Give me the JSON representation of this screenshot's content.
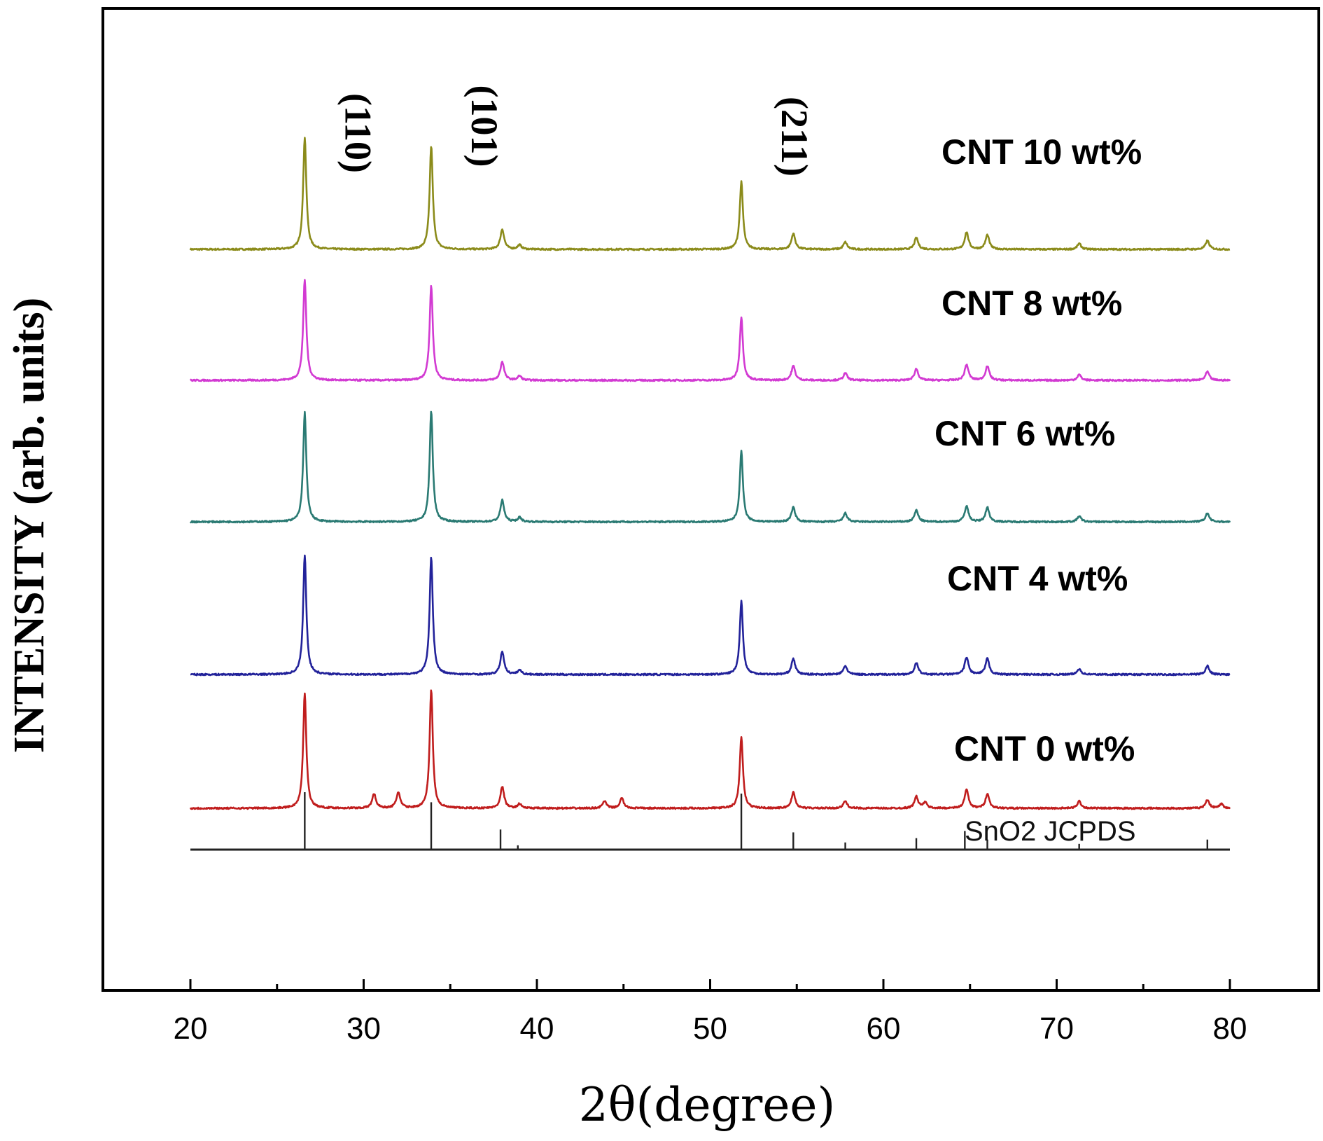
{
  "chart_data": {
    "type": "line",
    "xlabel": "2θ(degree)",
    "ylabel": "INTENSITY (arb. units)",
    "xlim": [
      15,
      82
    ],
    "xticks": [
      20,
      30,
      40,
      50,
      60,
      70,
      80
    ],
    "x_minor_step": 5,
    "grid": false,
    "legend": "inline labels to the right of each trace",
    "peak_labels": [
      {
        "text": "(110)",
        "x": 26.6
      },
      {
        "text": "(101)",
        "x": 33.9
      },
      {
        "text": "(211)",
        "x": 51.8
      }
    ],
    "series": [
      {
        "name": "CNT 10 wt%",
        "color": "#8b8b1a",
        "peaks": [
          {
            "x": 26.6,
            "h": 78
          },
          {
            "x": 33.9,
            "h": 72
          },
          {
            "x": 38.0,
            "h": 14
          },
          {
            "x": 39.0,
            "h": 3
          },
          {
            "x": 51.8,
            "h": 47
          },
          {
            "x": 54.8,
            "h": 11
          },
          {
            "x": 57.8,
            "h": 5
          },
          {
            "x": 61.9,
            "h": 8
          },
          {
            "x": 64.8,
            "h": 12
          },
          {
            "x": 66.0,
            "h": 10
          },
          {
            "x": 71.3,
            "h": 4
          },
          {
            "x": 78.7,
            "h": 6
          }
        ]
      },
      {
        "name": "CNT 8 wt%",
        "color": "#d23ad2",
        "peaks": [
          {
            "x": 26.6,
            "h": 70
          },
          {
            "x": 33.9,
            "h": 66
          },
          {
            "x": 38.0,
            "h": 13
          },
          {
            "x": 39.0,
            "h": 3
          },
          {
            "x": 51.8,
            "h": 44
          },
          {
            "x": 54.8,
            "h": 10
          },
          {
            "x": 57.8,
            "h": 5
          },
          {
            "x": 61.9,
            "h": 8
          },
          {
            "x": 64.8,
            "h": 11
          },
          {
            "x": 66.0,
            "h": 10
          },
          {
            "x": 71.3,
            "h": 4
          },
          {
            "x": 78.7,
            "h": 6
          }
        ]
      },
      {
        "name": "CNT 6 wt%",
        "color": "#2a7a73",
        "peaks": [
          {
            "x": 26.6,
            "h": 76
          },
          {
            "x": 33.9,
            "h": 77
          },
          {
            "x": 38.0,
            "h": 15
          },
          {
            "x": 39.0,
            "h": 3
          },
          {
            "x": 51.8,
            "h": 49
          },
          {
            "x": 54.8,
            "h": 10
          },
          {
            "x": 57.8,
            "h": 6
          },
          {
            "x": 61.9,
            "h": 8
          },
          {
            "x": 64.8,
            "h": 11
          },
          {
            "x": 66.0,
            "h": 10
          },
          {
            "x": 71.3,
            "h": 4
          },
          {
            "x": 78.7,
            "h": 6
          }
        ]
      },
      {
        "name": "CNT 4 wt%",
        "color": "#22229a",
        "peaks": [
          {
            "x": 26.6,
            "h": 83
          },
          {
            "x": 33.9,
            "h": 82
          },
          {
            "x": 38.0,
            "h": 16
          },
          {
            "x": 39.0,
            "h": 3
          },
          {
            "x": 51.8,
            "h": 51
          },
          {
            "x": 54.8,
            "h": 11
          },
          {
            "x": 57.8,
            "h": 6
          },
          {
            "x": 61.9,
            "h": 8
          },
          {
            "x": 64.8,
            "h": 12
          },
          {
            "x": 66.0,
            "h": 11
          },
          {
            "x": 71.3,
            "h": 4
          },
          {
            "x": 78.7,
            "h": 6
          }
        ]
      },
      {
        "name": "CNT 0 wt%",
        "color": "#c01d1d",
        "peaks": [
          {
            "x": 26.6,
            "h": 80
          },
          {
            "x": 30.6,
            "h": 10
          },
          {
            "x": 32.0,
            "h": 11
          },
          {
            "x": 33.9,
            "h": 83
          },
          {
            "x": 38.0,
            "h": 15
          },
          {
            "x": 39.0,
            "h": 3
          },
          {
            "x": 43.9,
            "h": 5
          },
          {
            "x": 44.9,
            "h": 7
          },
          {
            "x": 51.8,
            "h": 50
          },
          {
            "x": 54.8,
            "h": 11
          },
          {
            "x": 57.8,
            "h": 5
          },
          {
            "x": 61.9,
            "h": 8
          },
          {
            "x": 62.4,
            "h": 4
          },
          {
            "x": 64.8,
            "h": 13
          },
          {
            "x": 66.0,
            "h": 10
          },
          {
            "x": 71.3,
            "h": 5
          },
          {
            "x": 78.7,
            "h": 6
          },
          {
            "x": 79.5,
            "h": 3
          }
        ]
      }
    ],
    "reference": {
      "name": "SnO2 JCPDS",
      "color": "#222222",
      "lines": [
        {
          "x": 26.6,
          "h": 40
        },
        {
          "x": 33.9,
          "h": 33
        },
        {
          "x": 37.9,
          "h": 14
        },
        {
          "x": 38.9,
          "h": 3
        },
        {
          "x": 51.8,
          "h": 39
        },
        {
          "x": 54.8,
          "h": 12
        },
        {
          "x": 57.8,
          "h": 5
        },
        {
          "x": 61.9,
          "h": 8
        },
        {
          "x": 64.7,
          "h": 13
        },
        {
          "x": 66.0,
          "h": 7
        },
        {
          "x": 71.3,
          "h": 4
        },
        {
          "x": 78.7,
          "h": 7
        }
      ]
    }
  }
}
